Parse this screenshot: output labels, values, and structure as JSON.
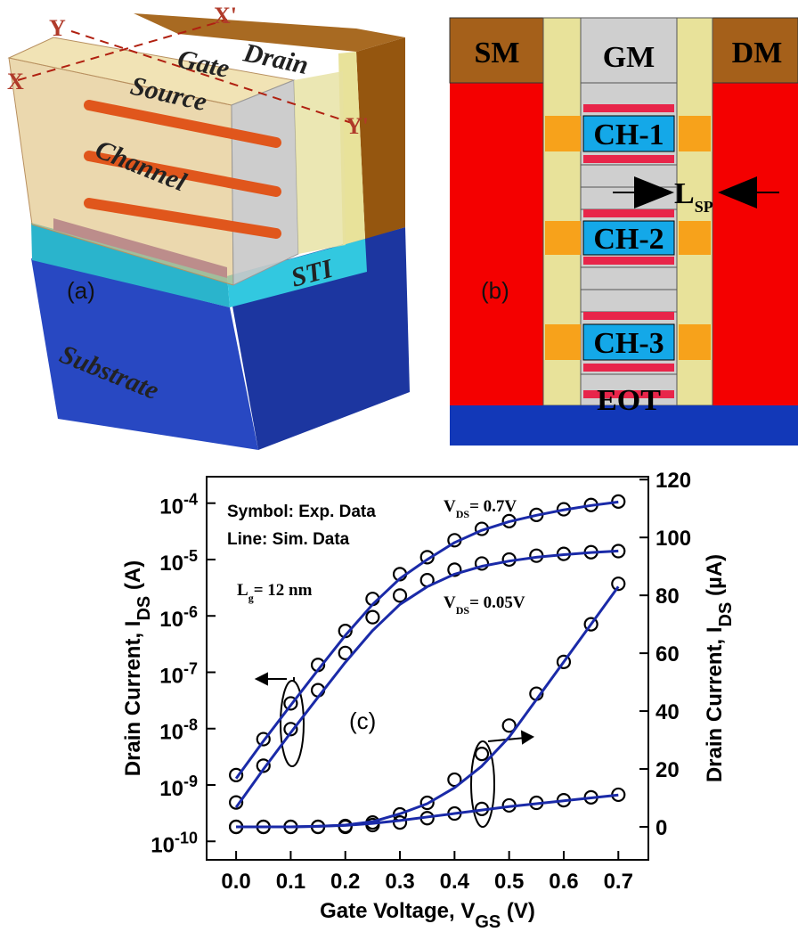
{
  "panel_a": {
    "drain": "Drain",
    "gate": "Gate",
    "source": "Source",
    "channel": "Channel",
    "sti": "STI",
    "substrate": "Substrate",
    "label": "(a)",
    "y": "Y",
    "x_prime": "X'",
    "x": "X",
    "y_prime": "Y'"
  },
  "panel_b": {
    "sm": "SM",
    "gm": "GM",
    "dm": "DM",
    "ch1": "CH-1",
    "ch2": "CH-2",
    "ch3": "CH-3",
    "eot": "EOT",
    "lsp_main": "L",
    "lsp_sub": "SP",
    "label": "(b)"
  },
  "chart_data": {
    "type": "line",
    "panel_label": "(c)",
    "x_label": {
      "main": "Gate Voltage, V",
      "sub": "GS",
      "rest": " (V)"
    },
    "y_label": {
      "main": "Drain Current, I",
      "sub": "DS",
      "rest": " (A)"
    },
    "y2_label": {
      "main": "Drain Current, I",
      "sub": "DS",
      "rest": " (µA)"
    },
    "annotations": {
      "symbol": "Symbol: Exp. Data",
      "line": "Line:  Sim. Data",
      "vds_high": {
        "main": "V",
        "sub": "DS",
        "rest": "= 0.7V"
      },
      "vds_low": {
        "main": "V",
        "sub": "DS",
        "rest": "= 0.05V"
      },
      "lg": {
        "main": "L",
        "sub": "g",
        "rest": "= 12 nm"
      }
    },
    "x": [
      0,
      0.05,
      0.1,
      0.15,
      0.2,
      0.25,
      0.3,
      0.35,
      0.4,
      0.45,
      0.5,
      0.55,
      0.6,
      0.65,
      0.7
    ],
    "xlim": [
      -0.054,
      0.755
    ],
    "xticks": [
      {
        "value": 0,
        "label": "0.0"
      },
      0.1,
      0.2,
      0.3,
      0.4,
      0.5,
      0.6,
      0.7
    ],
    "y_log": true,
    "ylim": [
      4.7e-11,
      0.000295
    ],
    "yticks": [
      {
        "value": 0.0001,
        "label": "10",
        "exponent": "-4"
      },
      {
        "value": 1e-05,
        "label": "10",
        "exponent": "-5"
      },
      {
        "value": 1e-06,
        "label": "10",
        "exponent": "-6"
      },
      {
        "value": 1e-07,
        "label": "10",
        "exponent": "-7"
      },
      {
        "value": 1e-08,
        "label": "10",
        "exponent": "-8"
      },
      {
        "value": 1e-09,
        "label": "10",
        "exponent": "-9"
      },
      {
        "value": 1e-10,
        "label": "10",
        "exponent": "-10"
      }
    ],
    "y2lim": [
      -11.4,
      121
    ],
    "y2ticks": [
      0,
      20,
      40,
      60,
      80,
      100,
      120
    ],
    "series": [
      {
        "style": "marker",
        "color": "#000000",
        "values": [
          1.5e-09,
          6.5e-09,
          2.8e-08,
          1.35e-07,
          5.4e-07,
          2e-06,
          5.5e-06,
          1.1e-05,
          2.2e-05,
          3.5e-05,
          4.8e-05,
          6.2e-05,
          7.8e-05,
          9.3e-05,
          0.000107
        ]
      },
      {
        "style": "marker",
        "color": "#000000",
        "values": [
          4.9e-10,
          2.2e-09,
          9.8e-09,
          4.8e-08,
          2.2e-07,
          9.5e-07,
          2.3e-06,
          4.3e-06,
          6.6e-06,
          8.5e-06,
          1e-05,
          1.17e-05,
          1.26e-05,
          1.35e-05,
          1.41e-05
        ]
      },
      {
        "style": "marker",
        "color": "#000000",
        "axis": "y2",
        "values": [
          0,
          0,
          0,
          0,
          0.3,
          1.5,
          4.3,
          8.3,
          16.3,
          25.2,
          35,
          46,
          57,
          70,
          84
        ]
      },
      {
        "style": "marker",
        "color": "#000000",
        "axis": "y2",
        "values": [
          0,
          0,
          0,
          0,
          0,
          0.6,
          1.5,
          3,
          4.6,
          6.2,
          7.4,
          8.3,
          9.2,
          10.2,
          11.1
        ]
      },
      {
        "style": "line",
        "color": "#1a2aa8",
        "values": [
          1.3e-09,
          6e-09,
          2.6e-08,
          1.1e-07,
          4.5e-07,
          1.6e-06,
          4.6e-06,
          1e-05,
          2e-05,
          3.3e-05,
          4.7e-05,
          6.1e-05,
          7.6e-05,
          9.1e-05,
          0.000105
        ]
      },
      {
        "style": "line",
        "color": "#1a2aa8",
        "values": [
          4e-10,
          1.9e-09,
          8.5e-09,
          3.6e-08,
          1.5e-07,
          5.5e-07,
          1.6e-06,
          3.3e-06,
          5.5e-06,
          7.6e-06,
          9.4e-06,
          1.1e-05,
          1.22e-05,
          1.33e-05,
          1.42e-05
        ]
      },
      {
        "style": "line",
        "color": "#1a2aa8",
        "axis": "y2",
        "values": [
          0,
          0,
          0,
          0.2,
          0.6,
          1.8,
          4.5,
          8,
          13.5,
          21,
          31,
          44,
          57,
          70,
          83
        ]
      },
      {
        "style": "line",
        "color": "#1a2aa8",
        "axis": "y2",
        "values": [
          0,
          0,
          0,
          0.2,
          0.5,
          1.2,
          2.2,
          3.4,
          4.6,
          5.8,
          7,
          8,
          9,
          10,
          11
        ]
      }
    ]
  }
}
